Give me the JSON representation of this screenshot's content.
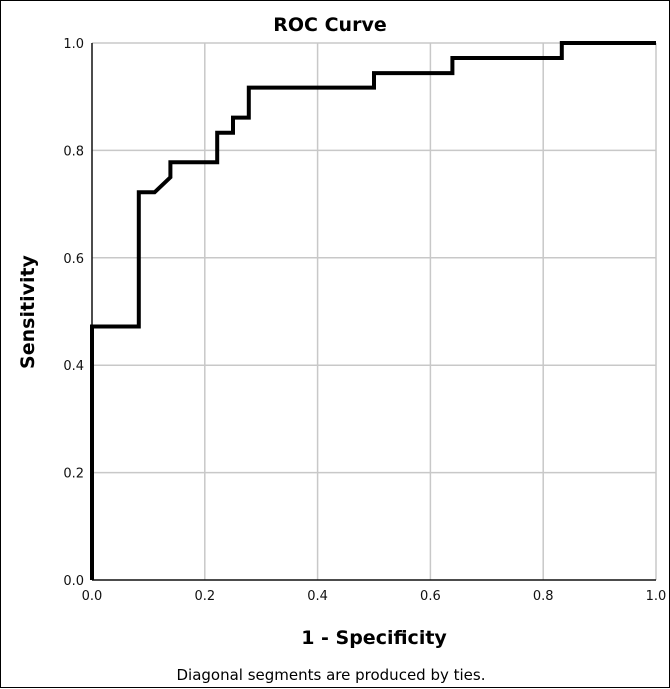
{
  "chart_data": {
    "type": "line",
    "title": "ROC Curve",
    "xlabel": "1 - Specificity",
    "ylabel": "Sensitivity",
    "xlim": [
      0.0,
      1.0
    ],
    "ylim": [
      0.0,
      1.0
    ],
    "x_ticks": [
      "0.0",
      "0.2",
      "0.4",
      "0.6",
      "0.8",
      "1.0"
    ],
    "y_ticks": [
      "0.0",
      "0.2",
      "0.4",
      "0.6",
      "0.8",
      "1.0"
    ],
    "grid": true,
    "line_color": "#000000",
    "grid_color": "#c8c8c8",
    "series": [
      {
        "x": [
          0.0,
          0.0,
          0.083,
          0.083,
          0.111,
          0.139,
          0.139,
          0.222,
          0.222,
          0.25,
          0.25,
          0.278,
          0.278,
          0.5,
          0.5,
          0.639,
          0.639,
          0.833,
          0.833,
          1.0
        ],
        "y": [
          0.0,
          0.472,
          0.472,
          0.722,
          0.722,
          0.75,
          0.778,
          0.778,
          0.833,
          0.833,
          0.861,
          0.861,
          0.917,
          0.917,
          0.944,
          0.944,
          0.972,
          0.972,
          1.0,
          1.0
        ]
      }
    ],
    "footnote": "Diagonal segments are produced by ties."
  }
}
